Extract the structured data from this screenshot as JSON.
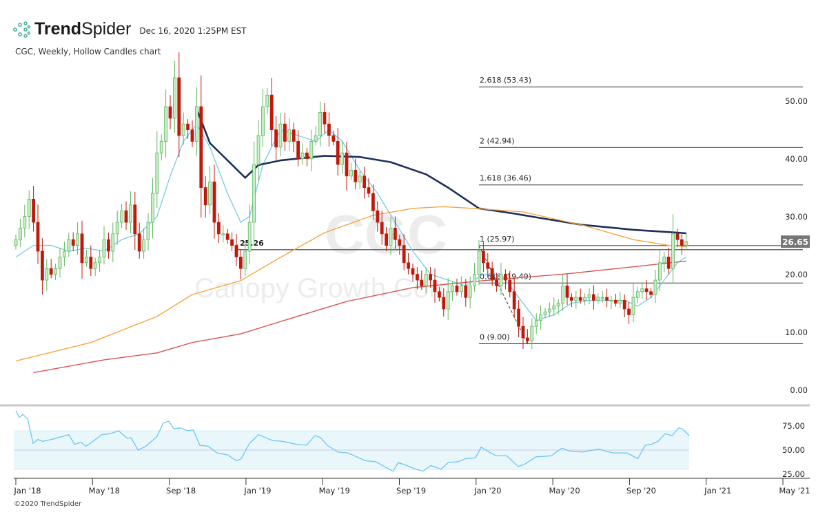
{
  "header": {
    "brand_bold": "Trend",
    "brand_light": "Spider",
    "timestamp": "Dec 16, 2020 1:25PM EST"
  },
  "subtitle": "CGC, Weekly, Hollow Candles chart",
  "copyright": "©2020 TrendSpider",
  "watermark": {
    "symbol": "CGC",
    "name": "Canopy Growth Corp"
  },
  "colors": {
    "up": "#5cb85c",
    "down": "#c0190c",
    "sma_fast": "#7fcbea",
    "sma_slow": "#1b2f5a",
    "ma_orange": "#f7a440",
    "ma_red": "#d9534f",
    "rsi": "#6cc5f2",
    "rsi_band": "#e9f7fb"
  },
  "chart_data": [
    {
      "type": "candlestick",
      "title": "CGC, Weekly, Hollow Candles chart",
      "x_ticks": [
        "Jan '18",
        "May '18",
        "Sep '18",
        "Jan '19",
        "May '19",
        "Sep '19",
        "Jan '20",
        "May '20",
        "Sep '20",
        "Jan '21",
        "May '21"
      ],
      "y_ticks": [
        "0.00",
        "10.00",
        "20.00",
        "30.00",
        "40.00",
        "50.00"
      ],
      "ylim": [
        0,
        60
      ],
      "last_price": "26.65",
      "level_label": "25.26",
      "weekly_closes": [
        27,
        29,
        31,
        34,
        30,
        25,
        20,
        22,
        21,
        22,
        24,
        25,
        27,
        26,
        28,
        23,
        24,
        22,
        23,
        24,
        27,
        25,
        28,
        30,
        32,
        30,
        33,
        28,
        25,
        27,
        30,
        35,
        42,
        44,
        50,
        48,
        55,
        45,
        47,
        46,
        44,
        50,
        36,
        33,
        37,
        30,
        28,
        28,
        27,
        26,
        24,
        22,
        25,
        30,
        40,
        45,
        50,
        52,
        46,
        43,
        47,
        44,
        46,
        44,
        41,
        42,
        41,
        44,
        45,
        49,
        47,
        45,
        44,
        40,
        42,
        38,
        39,
        37,
        38,
        36,
        35,
        32,
        30,
        28,
        26,
        29,
        27,
        26,
        23,
        22,
        21,
        20,
        19,
        21,
        20,
        18,
        17,
        15,
        18,
        19,
        18,
        19,
        17,
        19,
        21,
        25,
        23,
        22,
        20,
        19,
        21,
        20,
        18,
        15,
        12,
        10,
        9.5,
        12,
        13,
        14,
        14.5,
        15,
        15.5,
        16,
        19,
        17,
        16.5,
        17,
        16.5,
        17,
        17.5,
        16.5,
        17,
        17,
        16.5,
        16.5,
        16,
        16.5,
        15,
        14,
        17,
        18,
        18.5,
        18,
        17.5,
        20,
        23,
        24,
        22,
        28,
        27,
        26,
        26.65
      ],
      "moving_averages": [
        {
          "name": "fast",
          "points": [
            [
              0,
              24
            ],
            [
              4,
              26
            ],
            [
              8,
              26
            ],
            [
              12,
              25
            ],
            [
              16,
              25.5
            ],
            [
              20,
              25
            ],
            [
              24,
              27
            ],
            [
              28,
              28
            ],
            [
              32,
              31
            ],
            [
              35,
              38
            ],
            [
              38,
              44
            ],
            [
              41,
              47
            ],
            [
              44,
              43
            ],
            [
              48,
              35
            ],
            [
              51,
              30
            ],
            [
              53,
              31
            ],
            [
              56,
              40
            ],
            [
              60,
              46
            ],
            [
              64,
              45
            ],
            [
              68,
              44
            ],
            [
              71,
              46
            ],
            [
              74,
              44
            ],
            [
              78,
              39
            ],
            [
              82,
              35
            ],
            [
              86,
              30
            ],
            [
              90,
              25
            ],
            [
              94,
              21
            ],
            [
              98,
              20
            ],
            [
              102,
              19
            ],
            [
              106,
              21
            ],
            [
              110,
              21
            ],
            [
              114,
              17
            ],
            [
              118,
              13
            ],
            [
              122,
              14
            ],
            [
              126,
              16
            ],
            [
              130,
              16.5
            ],
            [
              134,
              16.5
            ],
            [
              138,
              16.5
            ],
            [
              141,
              15.5
            ],
            [
              144,
              17
            ],
            [
              147,
              20
            ],
            [
              150,
              23
            ],
            [
              152,
              24
            ]
          ]
        },
        {
          "name": "slow",
          "points": [
            [
              41,
              49.6
            ],
            [
              44,
              43.7
            ],
            [
              48,
              40.7
            ],
            [
              52,
              37.7
            ],
            [
              55,
              39.9
            ],
            [
              60,
              40.7
            ],
            [
              70,
              41.5
            ],
            [
              78,
              41.3
            ],
            [
              85,
              40.4
            ],
            [
              93,
              38.3
            ],
            [
              98,
              36
            ],
            [
              105,
              32.4
            ],
            [
              113,
              31.5
            ],
            [
              120,
              30.6
            ],
            [
              128,
              29.6
            ],
            [
              140,
              28.7
            ],
            [
              150,
              28.2
            ],
            [
              152,
              28.1
            ]
          ]
        },
        {
          "name": "orange",
          "points": [
            [
              0,
              6
            ],
            [
              17,
              9.2
            ],
            [
              32,
              13.7
            ],
            [
              40,
              17.5
            ],
            [
              51,
              19.9
            ],
            [
              59,
              23.5
            ],
            [
              70,
              28.2
            ],
            [
              81,
              31.2
            ],
            [
              90,
              32.4
            ],
            [
              97,
              32.7
            ],
            [
              106,
              32.3
            ],
            [
              115,
              31.8
            ],
            [
              129,
              29.4
            ],
            [
              140,
              27
            ],
            [
              148,
              26
            ],
            [
              152,
              25.8
            ]
          ]
        },
        {
          "name": "red",
          "points": [
            [
              4,
              4
            ],
            [
              20,
              6.2
            ],
            [
              32,
              7.4
            ],
            [
              40,
              9.2
            ],
            [
              51,
              10.7
            ],
            [
              62,
              13.3
            ],
            [
              75,
              16.3
            ],
            [
              90,
              18.7
            ],
            [
              106,
              19.9
            ],
            [
              125,
              21.1
            ],
            [
              140,
              22.3
            ],
            [
              152,
              23.3
            ]
          ]
        }
      ],
      "fibonacci": [
        {
          "label": "0 (9.00)",
          "value": 9.0
        },
        {
          "label": "0.618 (19.49)",
          "value": 19.49
        },
        {
          "label": "1 (25.97)",
          "value": 25.97
        },
        {
          "label": "1.618 (36.46)",
          "value": 36.46
        },
        {
          "label": "2 (42.94)",
          "value": 42.94
        },
        {
          "label": "2.618 (53.43)",
          "value": 53.43
        }
      ],
      "horizontal_level": 25.26
    },
    {
      "type": "line",
      "name": "RSI",
      "y_ticks": [
        "25.00",
        "50.00",
        "75.00"
      ],
      "band": [
        30,
        70
      ],
      "midline": 50,
      "points": [
        [
          0,
          91
        ],
        [
          0.8,
          84
        ],
        [
          1.6,
          87
        ],
        [
          2.7,
          82
        ],
        [
          3.9,
          57
        ],
        [
          5,
          61
        ],
        [
          6.1,
          59
        ],
        [
          8.9,
          62
        ],
        [
          12,
          66
        ],
        [
          13.3,
          56
        ],
        [
          14.8,
          58
        ],
        [
          15.9,
          54
        ],
        [
          17.2,
          58
        ],
        [
          19.5,
          66
        ],
        [
          21.4,
          67
        ],
        [
          23.3,
          70
        ],
        [
          25.3,
          62
        ],
        [
          26.1,
          63
        ],
        [
          27.7,
          50
        ],
        [
          29.5,
          54
        ],
        [
          32,
          64
        ],
        [
          33.4,
          78
        ],
        [
          34.7,
          80
        ],
        [
          35.8,
          72
        ],
        [
          37.3,
          73
        ],
        [
          38.9,
          70
        ],
        [
          40.2,
          71
        ],
        [
          41.7,
          55
        ],
        [
          43.6,
          54
        ],
        [
          45.6,
          47
        ],
        [
          48,
          45
        ],
        [
          50,
          39
        ],
        [
          51.1,
          41
        ],
        [
          53,
          57
        ],
        [
          55,
          66
        ],
        [
          56.6,
          63
        ],
        [
          58.1,
          60
        ],
        [
          60.5,
          59
        ],
        [
          63.6,
          56
        ],
        [
          65.9,
          55
        ],
        [
          67.8,
          65
        ],
        [
          69.1,
          63
        ],
        [
          70.6,
          55
        ],
        [
          73,
          48
        ],
        [
          75.3,
          47
        ],
        [
          79.2,
          39
        ],
        [
          81.6,
          38
        ],
        [
          83.9,
          32
        ],
        [
          85.5,
          28
        ],
        [
          86.7,
          37
        ],
        [
          88.6,
          34
        ],
        [
          90.2,
          31
        ],
        [
          92.3,
          28
        ],
        [
          94.1,
          34
        ],
        [
          96.4,
          30
        ],
        [
          98,
          37
        ],
        [
          100.3,
          38
        ],
        [
          101.9,
          41
        ],
        [
          104.2,
          42
        ],
        [
          105.5,
          53
        ],
        [
          107.3,
          48
        ],
        [
          108.9,
          44
        ],
        [
          111.3,
          44
        ],
        [
          113.9,
          33
        ],
        [
          115.2,
          35
        ],
        [
          118,
          43
        ],
        [
          121.4,
          44
        ],
        [
          123.8,
          52
        ],
        [
          125.5,
          49
        ],
        [
          128.4,
          48
        ],
        [
          132.3,
          51
        ],
        [
          133.6,
          49
        ],
        [
          135.5,
          47
        ],
        [
          138.6,
          47
        ],
        [
          141,
          41
        ],
        [
          142.7,
          55
        ],
        [
          144.1,
          56
        ],
        [
          145.6,
          59
        ],
        [
          147.2,
          67
        ],
        [
          148.8,
          65
        ],
        [
          150.3,
          73
        ],
        [
          151.1,
          72
        ],
        [
          152.7,
          65
        ]
      ]
    }
  ]
}
